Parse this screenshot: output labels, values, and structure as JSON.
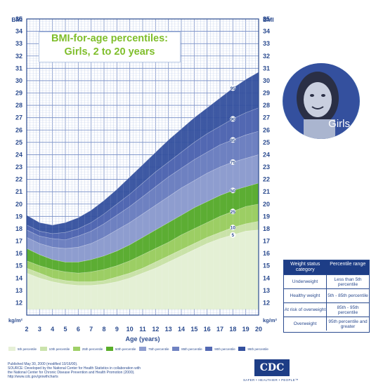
{
  "chart_data": {
    "type": "area",
    "title_lines": [
      "BMI-for-age percentiles:",
      "Girls, 2 to 20 years"
    ],
    "xlabel": "Age (years)",
    "ylabel_top": "BMI",
    "ylabel_bottom": "kg/m²",
    "xlim": [
      2,
      20
    ],
    "ylim": [
      11,
      35
    ],
    "x_ticks": [
      2,
      3,
      4,
      5,
      6,
      7,
      8,
      9,
      10,
      11,
      12,
      13,
      14,
      15,
      16,
      17,
      18,
      19,
      20
    ],
    "y_ticks": [
      12,
      13,
      14,
      15,
      16,
      17,
      18,
      19,
      20,
      21,
      22,
      23,
      24,
      25,
      26,
      27,
      28,
      29,
      30,
      31,
      32,
      33,
      34,
      35
    ],
    "x": [
      2,
      3,
      4,
      5,
      6,
      7,
      8,
      9,
      10,
      11,
      12,
      13,
      14,
      15,
      16,
      17,
      18,
      19,
      20
    ],
    "series": [
      {
        "name": "5",
        "values": [
          14.4,
          14.0,
          13.7,
          13.5,
          13.4,
          13.4,
          13.5,
          13.7,
          14.0,
          14.4,
          14.8,
          15.3,
          15.8,
          16.3,
          16.8,
          17.2,
          17.5,
          17.8,
          17.9
        ]
      },
      {
        "name": "10",
        "values": [
          14.8,
          14.4,
          14.0,
          13.8,
          13.7,
          13.7,
          13.8,
          14.1,
          14.4,
          14.8,
          15.3,
          15.8,
          16.3,
          16.8,
          17.3,
          17.7,
          18.1,
          18.4,
          18.6
        ]
      },
      {
        "name": "25",
        "values": [
          15.4,
          15.0,
          14.7,
          14.5,
          14.4,
          14.5,
          14.7,
          15.0,
          15.4,
          15.9,
          16.4,
          16.9,
          17.5,
          18.0,
          18.5,
          19.0,
          19.4,
          19.8,
          20.0
        ]
      },
      {
        "name": "50",
        "values": [
          16.4,
          15.9,
          15.5,
          15.3,
          15.3,
          15.5,
          15.8,
          16.2,
          16.7,
          17.3,
          17.9,
          18.5,
          19.1,
          19.7,
          20.2,
          20.7,
          21.1,
          21.4,
          21.7
        ]
      },
      {
        "name": "75",
        "values": [
          17.3,
          16.8,
          16.5,
          16.4,
          16.5,
          16.8,
          17.3,
          17.9,
          18.5,
          19.2,
          19.9,
          20.6,
          21.3,
          21.9,
          22.5,
          23.0,
          23.4,
          23.7,
          24.0
        ]
      },
      {
        "name": "85",
        "values": [
          17.9,
          17.4,
          17.2,
          17.1,
          17.4,
          17.8,
          18.4,
          19.1,
          19.8,
          20.6,
          21.4,
          22.2,
          22.9,
          23.6,
          24.2,
          24.8,
          25.2,
          25.6,
          25.9
        ]
      },
      {
        "name": "90",
        "values": [
          18.3,
          17.8,
          17.6,
          17.7,
          18.0,
          18.5,
          19.2,
          20.0,
          20.8,
          21.7,
          22.6,
          23.4,
          24.2,
          25.0,
          25.7,
          26.3,
          26.9,
          27.4,
          27.8
        ]
      },
      {
        "name": "95",
        "values": [
          19.1,
          18.5,
          18.3,
          18.5,
          18.9,
          19.5,
          20.3,
          21.2,
          22.2,
          23.2,
          24.2,
          25.2,
          26.1,
          27.0,
          27.8,
          28.6,
          29.4,
          30.1,
          30.7
        ]
      }
    ],
    "band_colors": [
      "#e6f0d7",
      "#cbe3ac",
      "#9fd067",
      "#5aae2a",
      "#8f9ed0",
      "#7083c2",
      "#5369b3",
      "#34509e"
    ]
  },
  "photo_label": "Girls",
  "legend": {
    "header": [
      "Weight status category",
      "Percentile range"
    ],
    "rows": [
      [
        "Underweight",
        "Less than 5th percentile"
      ],
      [
        "Healthy weight",
        "5th - 85th percentile"
      ],
      [
        "At risk of overweight",
        "85th - 95th percentile"
      ],
      [
        "Overweight",
        "95th percentile and greater"
      ]
    ]
  },
  "swatches": [
    "5th percentile",
    "10th percentile",
    "25th percentile",
    "50th percentile",
    "75th percentile",
    "85th percentile",
    "90th percentile",
    "95th percentile"
  ],
  "footer": {
    "line1": "Published May 30, 2000 (modified 10/16/00).",
    "line2": "SOURCE: Developed by the National Center for Health Statistics in collaboration with",
    "line3": "the National Center for Chronic Disease Prevention and Health Promotion (2000).",
    "line4": "http://www.cdc.gov/growthcharts"
  },
  "logo_text": "CDC",
  "tagline": "SAFER • HEALTHIER • PEOPLE™"
}
